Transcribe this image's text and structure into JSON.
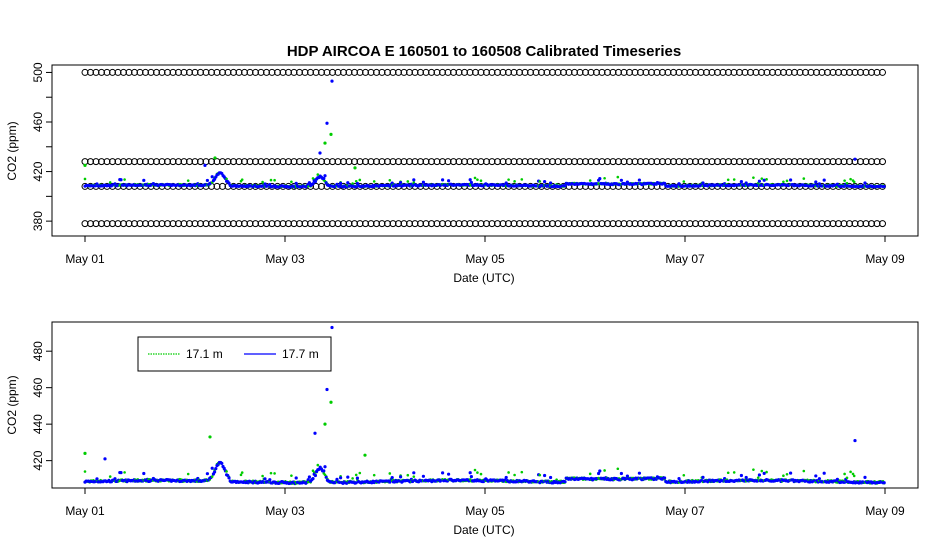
{
  "chart_data": [
    {
      "type": "scatter",
      "title": "HDP   AIRCOA  E   160501  to  160508   Calibrated Timeseries",
      "xlabel": "Date (UTC)",
      "ylabel": "CO2 (ppm)",
      "xlim": [
        "2016-05-01",
        "2016-05-09"
      ],
      "ylim": [
        368,
        506
      ],
      "yticks": [
        380,
        420,
        460,
        500
      ],
      "xticks": [
        "May 01",
        "May 03",
        "May 05",
        "May 07",
        "May 09"
      ],
      "reference_levels": [
        500,
        428,
        408,
        378
      ],
      "spikes": [
        {
          "x": 0.0,
          "y": 425
        },
        {
          "x": 1.2,
          "y": 425
        },
        {
          "x": 1.3,
          "y": 431
        },
        {
          "x": 2.35,
          "y": 435
        },
        {
          "x": 2.4,
          "y": 443
        },
        {
          "x": 2.42,
          "y": 459
        },
        {
          "x": 2.46,
          "y": 450
        },
        {
          "x": 2.47,
          "y": 493
        },
        {
          "x": 2.7,
          "y": 423
        },
        {
          "x": 7.7,
          "y": 430
        }
      ]
    },
    {
      "type": "scatter",
      "xlabel": "Date (UTC)",
      "ylabel": "CO2 (ppm)",
      "xlim": [
        "2016-05-01",
        "2016-05-09"
      ],
      "ylim": [
        405,
        496
      ],
      "yticks": [
        420,
        440,
        460,
        480
      ],
      "xticks": [
        "May 01",
        "May 03",
        "May 05",
        "May 07",
        "May 09"
      ],
      "legend": {
        "position": "top-left",
        "entries": [
          {
            "label": "17.1 m",
            "color": "#00cc00"
          },
          {
            "label": "17.7 m",
            "color": "#0000ff"
          }
        ]
      },
      "spikes": [
        {
          "x": 0.0,
          "y": 424
        },
        {
          "x": 0.2,
          "y": 421
        },
        {
          "x": 1.25,
          "y": 433
        },
        {
          "x": 2.3,
          "y": 435
        },
        {
          "x": 2.4,
          "y": 440
        },
        {
          "x": 2.42,
          "y": 459
        },
        {
          "x": 2.46,
          "y": 452
        },
        {
          "x": 2.47,
          "y": 493
        },
        {
          "x": 2.8,
          "y": 423
        },
        {
          "x": 7.7,
          "y": 431
        }
      ]
    }
  ],
  "colors": {
    "series_a": "#00cc00",
    "series_b": "#0000ff",
    "reference": "#000000"
  }
}
